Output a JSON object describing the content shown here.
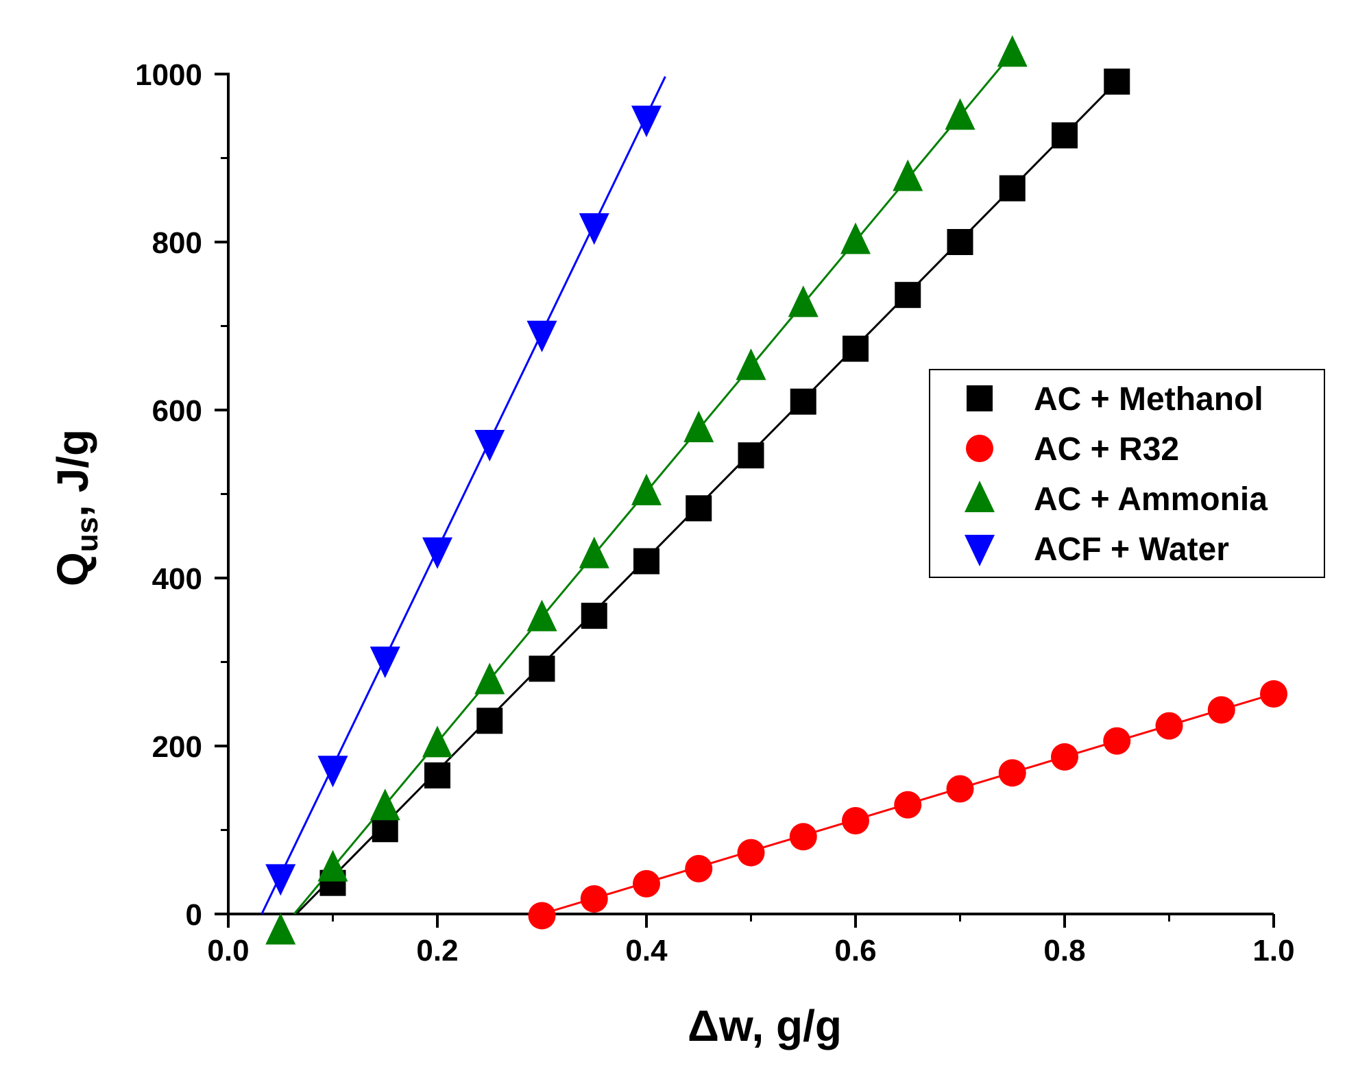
{
  "chart_data": {
    "type": "scatter",
    "title": "",
    "xlabel": "Δw, g/g",
    "ylabel_main": "Q",
    "ylabel_sub": "us",
    "ylabel_rest": ", J/g",
    "xlim": [
      0.0,
      1.0
    ],
    "ylim": [
      0,
      1000
    ],
    "xticks": [
      0.0,
      0.2,
      0.4,
      0.6,
      0.8,
      1.0
    ],
    "xtick_labels": [
      "0.0",
      "0.2",
      "0.4",
      "0.6",
      "0.8",
      "1.0"
    ],
    "yticks": [
      0,
      200,
      400,
      600,
      800,
      1000
    ],
    "ytick_labels": [
      "0",
      "200",
      "400",
      "600",
      "800",
      "1000"
    ],
    "grid": false,
    "legend_position": "right",
    "series": [
      {
        "name": "AC + Methanol",
        "marker": "square",
        "color": "#000000",
        "x": [
          0.1,
          0.15,
          0.2,
          0.25,
          0.3,
          0.35,
          0.4,
          0.45,
          0.5,
          0.55,
          0.6,
          0.65,
          0.7,
          0.75,
          0.8,
          0.85
        ],
        "y": [
          37,
          101,
          165,
          230,
          292,
          355,
          420,
          483,
          546,
          610,
          673,
          737,
          800,
          864,
          927,
          991
        ],
        "fit_line": {
          "x": [
            0.065,
            0.85
          ],
          "y": [
            0,
            991
          ]
        }
      },
      {
        "name": "AC + R32",
        "marker": "circle",
        "color": "#ff0000",
        "x": [
          0.3,
          0.35,
          0.4,
          0.45,
          0.5,
          0.55,
          0.6,
          0.65,
          0.7,
          0.75,
          0.8,
          0.85,
          0.9,
          0.95,
          1.0
        ],
        "y": [
          -2,
          18,
          36,
          54,
          73,
          92,
          111,
          130,
          149,
          168,
          187,
          206,
          224,
          243,
          262
        ],
        "fit_line": {
          "x": [
            0.3,
            1.0
          ],
          "y": [
            0,
            262
          ]
        }
      },
      {
        "name": "AC + Ammonia",
        "marker": "triangle-up",
        "color": "#008000",
        "x": [
          0.05,
          0.1,
          0.15,
          0.2,
          0.25,
          0.3,
          0.35,
          0.4,
          0.45,
          0.5,
          0.55,
          0.6,
          0.65,
          0.7,
          0.75
        ],
        "y": [
          -20,
          55,
          128,
          203,
          278,
          353,
          428,
          503,
          578,
          652,
          727,
          802,
          877,
          950,
          1025
        ],
        "fit_line": {
          "x": [
            0.063,
            0.75
          ],
          "y": [
            0,
            1025
          ]
        }
      },
      {
        "name": "ACF + Water",
        "marker": "triangle-down",
        "color": "#0000ff",
        "x": [
          0.05,
          0.1,
          0.15,
          0.2,
          0.25,
          0.3,
          0.35,
          0.4
        ],
        "y": [
          43,
          172,
          302,
          432,
          560,
          690,
          818,
          946
        ],
        "fit_line": {
          "x": [
            0.032,
            0.418
          ],
          "y": [
            0,
            997
          ]
        }
      }
    ]
  }
}
